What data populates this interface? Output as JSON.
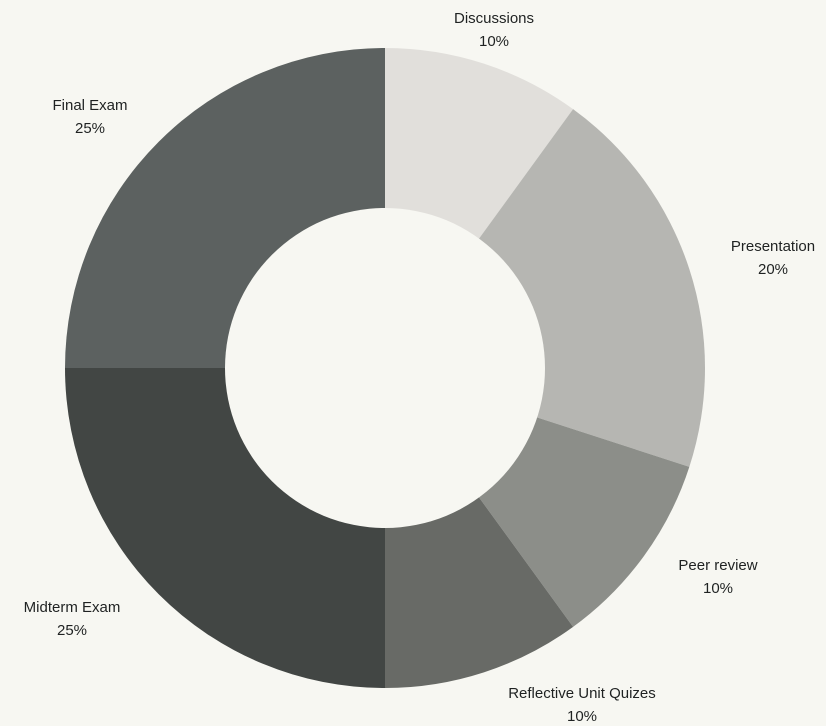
{
  "chart_data": {
    "type": "pie",
    "variant": "donut",
    "title": "",
    "start_angle_deg": 0,
    "direction": "clockwise",
    "slices": [
      {
        "name": "Discussions",
        "value": 10,
        "value_label": "10%",
        "color": "#e1dfdb"
      },
      {
        "name": "Presentation",
        "value": 20,
        "value_label": "20%",
        "color": "#b6b6b2"
      },
      {
        "name": "Peer review",
        "value": 10,
        "value_label": "10%",
        "color": "#8c8e89"
      },
      {
        "name": "Reflective Unit Quizes",
        "value": 10,
        "value_label": "10%",
        "color": "#686a66"
      },
      {
        "name": "Midterm Exam",
        "value": 25,
        "value_label": "25%",
        "color": "#424644"
      },
      {
        "name": "Final Exam",
        "value": 25,
        "value_label": "25%",
        "color": "#5c6160"
      }
    ]
  },
  "colors": {
    "background": "#f7f7f2",
    "hole": "#f7f7f2",
    "label_text": "#1f2222"
  }
}
